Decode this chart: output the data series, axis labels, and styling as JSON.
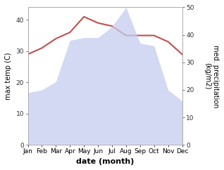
{
  "months": [
    "Jan",
    "Feb",
    "Mar",
    "Apr",
    "May",
    "Jun",
    "Jul",
    "Aug",
    "Sep",
    "Oct",
    "Nov",
    "Dec"
  ],
  "month_indices": [
    1,
    2,
    3,
    4,
    5,
    6,
    7,
    8,
    9,
    10,
    11,
    12
  ],
  "precipitation": [
    19,
    20,
    23,
    38,
    39,
    39,
    43,
    50,
    37,
    36,
    20,
    16
  ],
  "temperature": [
    29,
    31,
    34,
    36,
    41,
    39,
    38,
    35,
    35,
    35,
    33,
    29
  ],
  "temp_ylim": [
    0,
    44
  ],
  "precip_ylim": [
    0,
    50
  ],
  "temp_color": "#c0504d",
  "precip_fill_color": "#c5cdf0",
  "precip_fill_alpha": 0.75,
  "xlabel": "date (month)",
  "ylabel_left": "max temp (C)",
  "ylabel_right": "med. precipitation\n(kg/m2)",
  "background_color": "#ffffff",
  "spine_color": "#aaaaaa",
  "tick_color": "#333333",
  "font_size_axis_label": 7,
  "font_size_tick": 6.5,
  "font_size_xlabel": 8,
  "left_ticks": [
    0,
    10,
    20,
    30,
    40
  ],
  "right_ticks": [
    0,
    10,
    20,
    30,
    40,
    50
  ]
}
